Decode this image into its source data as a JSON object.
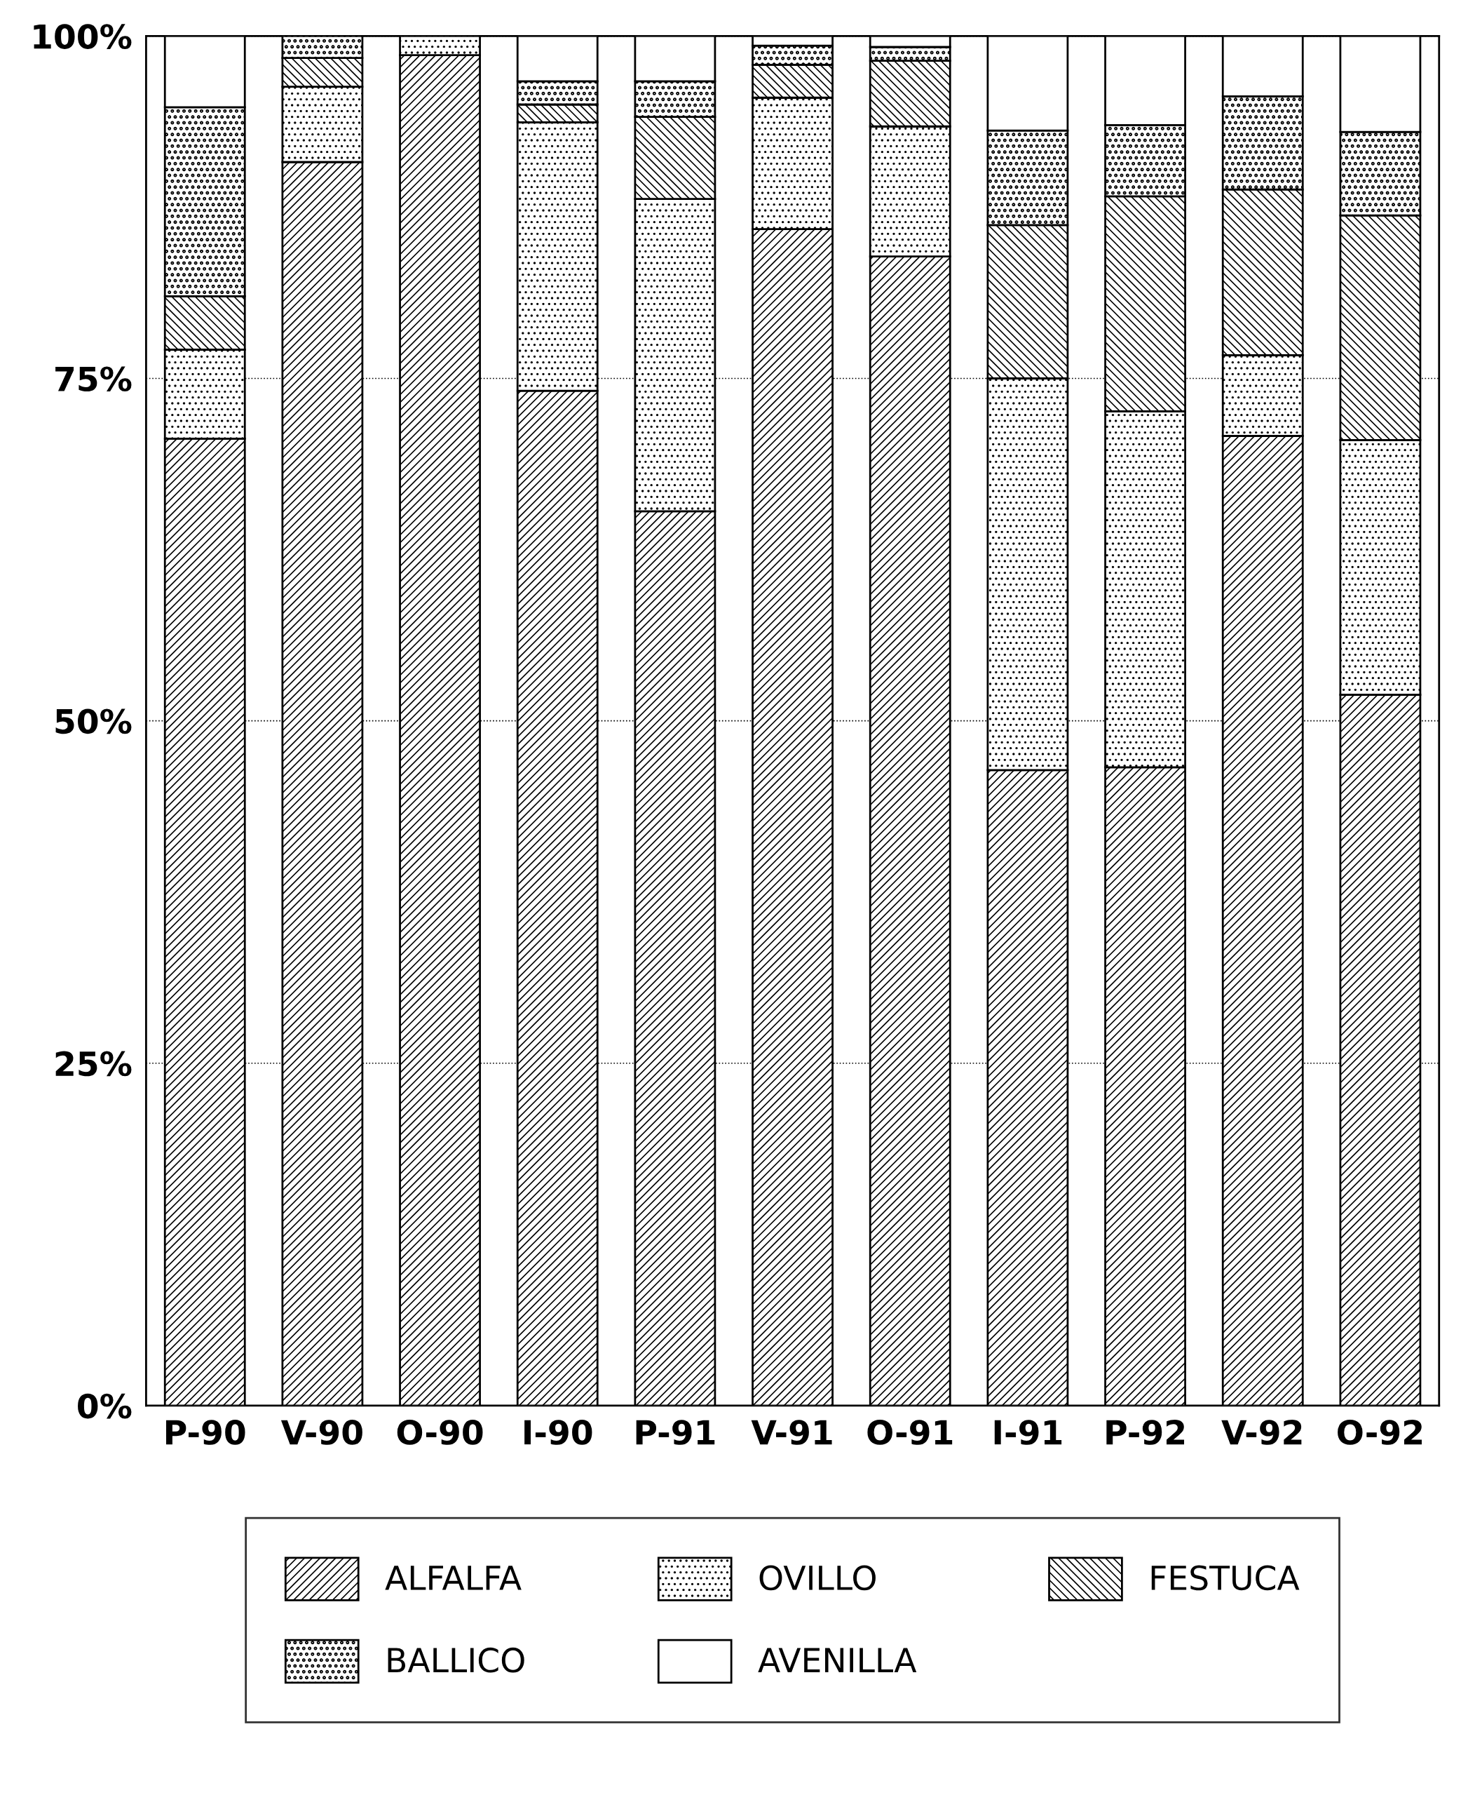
{
  "chart_data": {
    "type": "bar",
    "stacked": true,
    "categories": [
      "P-90",
      "V-90",
      "O-90",
      "I-90",
      "P-91",
      "V-91",
      "O-91",
      "I-91",
      "P-92",
      "V-92",
      "O-92"
    ],
    "series": [
      {
        "name": "ALFALFA",
        "color": "#000000",
        "values": [
          70.6,
          90.8,
          98.6,
          74.1,
          65.3,
          85.9,
          83.9,
          46.4,
          46.6,
          70.8,
          51.9
        ]
      },
      {
        "name": "OVILLO",
        "color": "#000000",
        "values": [
          6.5,
          5.5,
          1.4,
          19.6,
          22.8,
          9.6,
          9.5,
          28.6,
          26.0,
          5.9,
          18.6
        ]
      },
      {
        "name": "FESTUCA",
        "color": "#000000",
        "values": [
          3.9,
          2.1,
          null,
          1.3,
          6.0,
          2.4,
          4.8,
          11.2,
          15.7,
          12.1,
          16.4
        ]
      },
      {
        "name": "BALLICO",
        "color": "#000000",
        "values": [
          13.8,
          1.6,
          null,
          1.7,
          2.6,
          1.4,
          1.0,
          6.9,
          5.2,
          6.8,
          6.1
        ]
      },
      {
        "name": "AVENILLA",
        "color": "#ffffff",
        "values": [
          5.2,
          null,
          null,
          3.3,
          3.3,
          0.7,
          0.8,
          6.9,
          6.5,
          4.4,
          7.0
        ]
      }
    ],
    "ylim": [
      0,
      100
    ],
    "yticks": [
      {
        "value": 0,
        "label": "0%"
      },
      {
        "value": 25,
        "label": "25%"
      },
      {
        "value": 50,
        "label": "50%"
      },
      {
        "value": 75,
        "label": "75%"
      },
      {
        "value": 100,
        "label": "100%"
      }
    ],
    "grid": "y",
    "legend": "bottom"
  }
}
